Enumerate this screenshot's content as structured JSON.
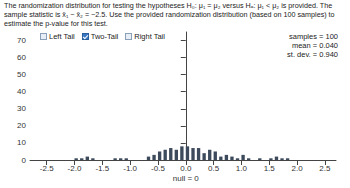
{
  "chart_data": {
    "type": "histogram",
    "title": "The randomization distribution for testing the hypotheses H₀: μ₁ = μ₂ versus Hₐ: μ₁ < μ₂ is provided. The sample statistic is x̄₁ − x̄₂ = −2.5. Use the provided randomization distribution (based on 100 samples) to estimate the p-value for this test.",
    "bins": [
      -2.5,
      -2.4,
      -2.3,
      -2.2,
      -2.1,
      -2.0,
      -1.9,
      -1.8,
      -1.7,
      -1.6,
      -1.5,
      -1.4,
      -1.3,
      -1.2,
      -1.1,
      -1.0,
      -0.9,
      -0.8,
      -0.7,
      -0.6,
      -0.5,
      -0.4,
      -0.3,
      -0.2,
      -0.1,
      0.0,
      0.1,
      0.2,
      0.3,
      0.4,
      0.5,
      0.6,
      0.7,
      0.8,
      0.9,
      1.0,
      1.1,
      1.2,
      1.3,
      1.4,
      1.5,
      1.6,
      1.7,
      1.8,
      1.9,
      2.0,
      2.1,
      2.2,
      2.3,
      2.4,
      2.5
    ],
    "values": [
      0,
      0,
      0,
      0,
      0,
      1,
      1,
      2,
      1,
      0,
      0,
      0,
      1,
      1,
      1,
      0,
      0,
      0,
      2,
      3,
      5,
      6,
      7,
      6,
      8,
      8,
      7,
      7,
      4,
      6,
      5,
      2,
      3,
      2,
      1,
      3,
      1,
      0,
      1,
      0,
      1,
      2,
      1,
      1,
      0,
      0,
      0,
      0,
      0,
      0
    ],
    "color": "#3d4a5c",
    "xlim": [
      -2.8,
      2.7
    ],
    "xticks": [
      -2.5,
      {
        "value": -2,
        "label": "-2.0"
      },
      -1.5,
      {
        "value": -1,
        "label": "-1.0"
      },
      -0.5,
      {
        "value": 0,
        "label": "0.0"
      },
      0.5,
      {
        "value": 1,
        "label": "1.0"
      },
      1.5,
      {
        "value": 2,
        "label": "2.0"
      },
      2.5
    ],
    "ylim": [
      0,
      75
    ],
    "yticks": [
      0,
      10,
      20,
      30,
      40,
      50,
      60,
      70
    ],
    "grid": false,
    "annotations": [
      {
        "text": "null = 0",
        "x": 0
      }
    ],
    "tail_options": [
      {
        "label": "Left Tail",
        "checked": false
      },
      {
        "label": "Two-Tail",
        "checked": true
      },
      {
        "label": "Right Tail",
        "checked": false
      }
    ],
    "stats": [
      "samples = 100",
      "mean = 0.040",
      "st. dev. = 0.940"
    ]
  }
}
